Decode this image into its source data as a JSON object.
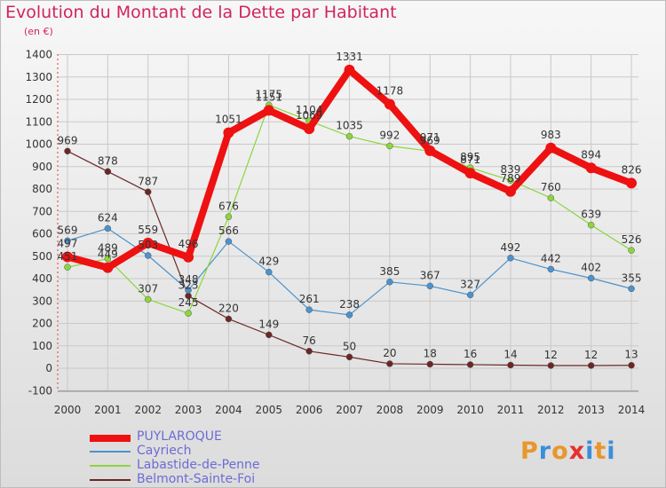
{
  "title": "Evolution du Montant de la Dette par Habitant",
  "unit_label": "(en €)",
  "logo": {
    "letters": [
      "P",
      "r",
      "o",
      "x",
      "i",
      "t",
      "i"
    ],
    "colors": [
      "#e9962b",
      "#3a8fd9",
      "#e9962b",
      "#e8302d",
      "#3a8fd9",
      "#e9962b",
      "#3a8fd9"
    ]
  },
  "chart_data": {
    "type": "line",
    "x": [
      "2000",
      "2001",
      "2002",
      "2003",
      "2004",
      "2005",
      "2006",
      "2007",
      "2008",
      "2009",
      "2010",
      "2011",
      "2012",
      "2013",
      "2014"
    ],
    "ylim": [
      -100,
      1400
    ],
    "yticks": [
      "-100",
      "0",
      "100",
      "200",
      "300",
      "400",
      "500",
      "600",
      "700",
      "800",
      "900",
      "1000",
      "1100",
      "1200",
      "1300",
      "1400"
    ],
    "grid": true,
    "legend_position": "bottom-left",
    "series": [
      {
        "name": "PUYLAROQUE",
        "color": "#ee1111",
        "values": [
          497,
          449,
          559,
          496,
          1051,
          1151,
          1069,
          1331,
          1178,
          971,
          871,
          789,
          983,
          894,
          826
        ]
      },
      {
        "name": "Cayriech",
        "color": "#4c92cc",
        "values": [
          569,
          624,
          503,
          348,
          566,
          429,
          261,
          238,
          385,
          367,
          327,
          492,
          442,
          402,
          355
        ]
      },
      {
        "name": "Labastide-de-Penne",
        "color": "#8cd63c",
        "values": [
          451,
          489,
          307,
          245,
          676,
          1175,
          1104,
          1035,
          992,
          969,
          895,
          839,
          760,
          639,
          526
        ]
      },
      {
        "name": "Belmont-Sainte-Foi",
        "color": "#6b2727",
        "values": [
          969,
          878,
          787,
          323,
          220,
          149,
          76,
          50,
          20,
          18,
          16,
          14,
          12,
          12,
          13
        ]
      }
    ]
  }
}
